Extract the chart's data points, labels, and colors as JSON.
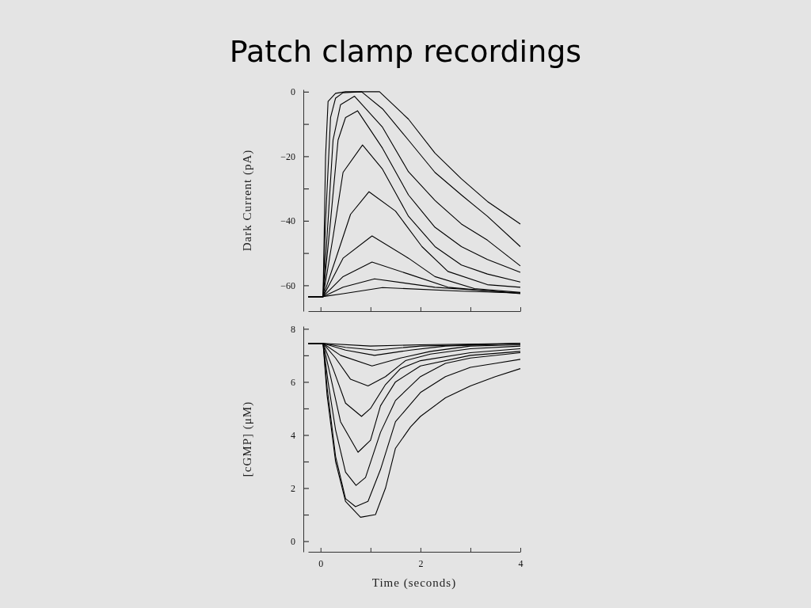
{
  "chart_data": [
    {
      "type": "line",
      "title": "Patch clamp recordings",
      "ylabel": "Dark Current (pA)",
      "tick_labels": "y",
      "xlim": [
        -0.25,
        4
      ],
      "ylim": [
        -68,
        0.7
      ],
      "xticks": [
        0,
        1,
        2,
        3,
        4
      ],
      "yticks": [
        0,
        {
          "value": -10,
          "label": null
        },
        -20,
        {
          "value": -30,
          "label": null
        },
        -40,
        {
          "value": -50,
          "label": null
        },
        -60
      ],
      "series": [
        {
          "color": "#000000",
          "x": [
            -0.25,
            0.05,
            0.1,
            0.15,
            0.3,
            0.5,
            1.18,
            1.76,
            2.29,
            2.82,
            3.34,
            4
          ],
          "values": [
            -63.5,
            -63.5,
            -20,
            -3,
            -0.5,
            0,
            0,
            -8.5,
            -19,
            -27,
            -34,
            -41
          ]
        },
        {
          "color": "#000000",
          "x": [
            -0.25,
            0.05,
            0.1,
            0.2,
            0.3,
            0.45,
            0.82,
            1.24,
            1.76,
            2.29,
            2.82,
            3.34,
            4
          ],
          "values": [
            -63.5,
            -63.5,
            -40,
            -8,
            -2,
            -0.3,
            0,
            -5.3,
            -15,
            -25,
            -32,
            -38.6,
            -48
          ]
        },
        {
          "color": "#000000",
          "x": [
            -0.25,
            0.05,
            0.15,
            0.25,
            0.4,
            0.68,
            1.24,
            1.76,
            2.29,
            2.82,
            3.34,
            4
          ],
          "values": [
            -63.5,
            -63.5,
            -40,
            -15,
            -4,
            -1.4,
            -11,
            -24.8,
            -33.7,
            -41,
            -46,
            -54
          ]
        },
        {
          "color": "#000000",
          "x": [
            -0.25,
            0.05,
            0.2,
            0.35,
            0.5,
            0.74,
            1.24,
            1.76,
            2.29,
            2.82,
            3.34,
            4
          ],
          "values": [
            -63.5,
            -63.5,
            -40,
            -15,
            -8,
            -5.9,
            -17.5,
            -32,
            -42,
            -48,
            -52,
            -56
          ]
        },
        {
          "color": "#000000",
          "x": [
            -0.25,
            0.05,
            0.25,
            0.45,
            0.84,
            1.24,
            1.76,
            2.29,
            2.82,
            3.34,
            4
          ],
          "values": [
            -63.5,
            -63.5,
            -45,
            -25,
            -16.5,
            -24,
            -38.6,
            -48,
            -53.7,
            -56.5,
            -59
          ]
        },
        {
          "color": "#000000",
          "x": [
            -0.25,
            0.05,
            0.3,
            0.6,
            0.97,
            1.5,
            2.03,
            2.55,
            3.34,
            4
          ],
          "values": [
            -63.5,
            -63.5,
            -52,
            -38,
            -31,
            -37,
            -48,
            -55.7,
            -59.8,
            -60.6
          ]
        },
        {
          "color": "#000000",
          "x": [
            -0.25,
            0.05,
            0.45,
            1.03,
            1.76,
            2.29,
            3.08,
            4
          ],
          "values": [
            -63.5,
            -63.5,
            -51.6,
            -44.7,
            -51.6,
            -57.3,
            -61,
            -62.2
          ]
        },
        {
          "color": "#000000",
          "x": [
            -0.25,
            0.05,
            0.45,
            1.03,
            1.76,
            2.55,
            4
          ],
          "values": [
            -63.5,
            -63.5,
            -57.3,
            -52.8,
            -56.5,
            -60.6,
            -62.6
          ]
        },
        {
          "color": "#000000",
          "x": [
            -0.25,
            0.05,
            0.45,
            1.08,
            2.29,
            4
          ],
          "values": [
            -63.5,
            -63.5,
            -60.6,
            -58,
            -60.6,
            -62.4
          ]
        },
        {
          "color": "#000000",
          "x": [
            -0.25,
            0.05,
            0.45,
            1.24,
            2.82,
            4
          ],
          "values": [
            -63.5,
            -63.5,
            -62.6,
            -60.7,
            -61.8,
            -62.4
          ]
        }
      ]
    },
    {
      "type": "line",
      "xlabel": "Time (seconds)",
      "ylabel": "[cGMP] (μM)",
      "xlim": [
        -0.25,
        4
      ],
      "ylim": [
        -0.4,
        8.1
      ],
      "xticks": [
        0,
        {
          "value": 1,
          "label": null
        },
        2,
        {
          "value": 3,
          "label": null
        },
        4
      ],
      "yticks": [
        0,
        {
          "value": 1,
          "label": null
        },
        2,
        {
          "value": 3,
          "label": null
        },
        4,
        {
          "value": 5,
          "label": null
        },
        6,
        {
          "value": 7,
          "label": null
        },
        8
      ],
      "series": [
        {
          "color": "#000000",
          "x": [
            -0.25,
            0.05,
            1.0,
            2,
            4
          ],
          "values": [
            7.45,
            7.45,
            7.35,
            7.4,
            7.45
          ]
        },
        {
          "color": "#000000",
          "x": [
            -0.25,
            0.05,
            0.5,
            1.1,
            2,
            4
          ],
          "values": [
            7.45,
            7.45,
            7.3,
            7.2,
            7.35,
            7.45
          ]
        },
        {
          "color": "#000000",
          "x": [
            -0.25,
            0.05,
            0.5,
            1.08,
            1.8,
            2.5,
            4
          ],
          "values": [
            7.45,
            7.45,
            7.2,
            7.0,
            7.2,
            7.35,
            7.45
          ]
        },
        {
          "color": "#000000",
          "x": [
            -0.25,
            0.05,
            0.4,
            1.03,
            1.6,
            2.2,
            3,
            4
          ],
          "values": [
            7.45,
            7.45,
            7.0,
            6.6,
            6.9,
            7.15,
            7.35,
            7.4
          ]
        },
        {
          "color": "#000000",
          "x": [
            -0.25,
            0.05,
            0.3,
            0.6,
            0.95,
            1.3,
            1.7,
            2.2,
            3,
            4
          ],
          "values": [
            7.45,
            7.45,
            6.9,
            6.1,
            5.85,
            6.2,
            6.8,
            7.05,
            7.25,
            7.35
          ]
        },
        {
          "color": "#000000",
          "x": [
            -0.25,
            0.05,
            0.25,
            0.5,
            0.82,
            1.0,
            1.3,
            1.6,
            2.0,
            3,
            4
          ],
          "values": [
            7.45,
            7.45,
            6.5,
            5.2,
            4.7,
            5.0,
            5.9,
            6.5,
            6.8,
            7.1,
            7.25
          ]
        },
        {
          "color": "#000000",
          "x": [
            -0.25,
            0.05,
            0.2,
            0.4,
            0.75,
            1.0,
            1.2,
            1.5,
            2.0,
            3,
            4
          ],
          "values": [
            7.45,
            7.45,
            6.2,
            4.5,
            3.35,
            3.8,
            5.1,
            6.0,
            6.6,
            7.0,
            7.15
          ]
        },
        {
          "color": "#000000",
          "x": [
            -0.25,
            0.05,
            0.15,
            0.3,
            0.5,
            0.71,
            0.9,
            1.2,
            1.5,
            2.0,
            2.5,
            3,
            4
          ],
          "values": [
            7.45,
            7.45,
            6,
            4.2,
            2.6,
            2.1,
            2.4,
            4.1,
            5.3,
            6.2,
            6.7,
            6.9,
            7.1
          ]
        },
        {
          "color": "#000000",
          "x": [
            -0.25,
            0.05,
            0.13,
            0.3,
            0.5,
            0.7,
            0.95,
            1.2,
            1.5,
            2.0,
            2.5,
            3.0,
            3.5,
            4
          ],
          "values": [
            7.45,
            7.45,
            5.8,
            3.2,
            1.6,
            1.3,
            1.5,
            2.7,
            4.5,
            5.6,
            6.2,
            6.55,
            6.7,
            6.85
          ]
        },
        {
          "color": "#000000",
          "x": [
            -0.25,
            0.05,
            0.13,
            0.3,
            0.5,
            0.8,
            1.1,
            1.3,
            1.5,
            1.8,
            2.0,
            2.5,
            3.0,
            3.5,
            4
          ],
          "values": [
            7.45,
            7.45,
            5.5,
            3,
            1.5,
            0.9,
            1.0,
            2.0,
            3.5,
            4.3,
            4.7,
            5.4,
            5.85,
            6.2,
            6.5
          ]
        }
      ]
    }
  ]
}
